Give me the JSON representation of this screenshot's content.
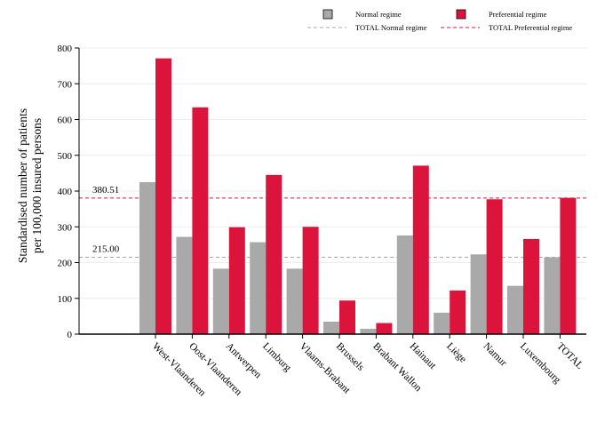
{
  "chart_data": {
    "type": "bar",
    "ylabel_lines": [
      "Standardised number of patients",
      "per 100,000 insured persons"
    ],
    "xlabel": "",
    "ylim": [
      0,
      800
    ],
    "yticks": [
      0,
      100,
      200,
      300,
      400,
      500,
      600,
      700,
      800
    ],
    "grid": true,
    "legend_position": "top-right",
    "categories": [
      "West-Vlaanderen",
      "Oost-Vlaanderen",
      "Antwerpen",
      "Limburg",
      "Vlaams-Brabant",
      "Brussels",
      "Brabant Wallon",
      "Hainaut",
      "Liège",
      "Namur",
      "Luxembourg",
      "TOTAL"
    ],
    "series": [
      {
        "name": "Normal regime",
        "color": "#a9a9a9",
        "values": [
          425,
          272,
          183,
          257,
          183,
          35,
          15,
          276,
          60,
          223,
          135,
          215
        ]
      },
      {
        "name": "Preferential regime",
        "color": "#dc143c",
        "values": [
          771,
          634,
          299,
          445,
          300,
          94,
          31,
          471,
          122,
          377,
          266,
          381
        ]
      }
    ],
    "reference_lines": [
      {
        "name": "TOTAL Normal regime",
        "value": 215.0,
        "label": "215.00",
        "color": "#a9a9a9"
      },
      {
        "name": "TOTAL Preferential regime",
        "value": 380.51,
        "label": "380.51",
        "color": "#dc143c"
      }
    ]
  }
}
